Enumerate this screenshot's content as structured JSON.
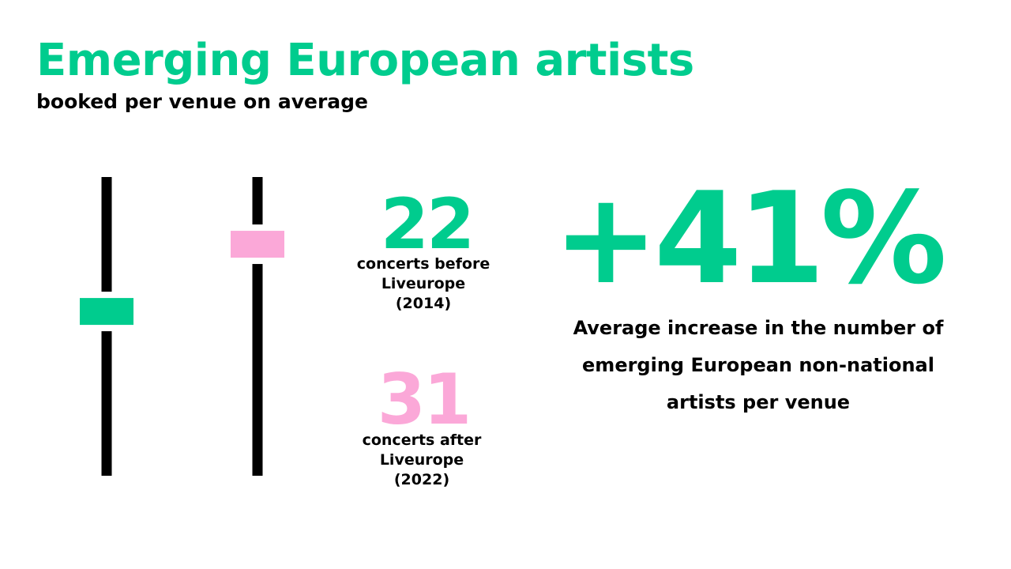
{
  "colors": {
    "accent_green": "#00cc8e",
    "accent_pink": "#fba8d8",
    "track": "#000000"
  },
  "header": {
    "title": "Emerging European artists",
    "subtitle": "booked per venue on average"
  },
  "chart_data": {
    "type": "slider",
    "series": [
      {
        "name": "",
        "value": 22,
        "color": "#00cc8e"
      },
      {
        "name": "",
        "value": 31,
        "color": "#fba8d8"
      }
    ],
    "ylim": [
      0,
      40
    ],
    "grid": false
  },
  "stats": [
    {
      "value": "22",
      "caption": [
        "concerts before",
        "Liveurope",
        "(2014)"
      ]
    },
    {
      "value": "31",
      "caption": [
        "concerts after",
        "Liveurope",
        "(2022)"
      ]
    }
  ],
  "highlight": {
    "value": "+41%",
    "description": [
      "Average increase in the number of",
      "emerging European non-national",
      "artists per venue"
    ]
  }
}
